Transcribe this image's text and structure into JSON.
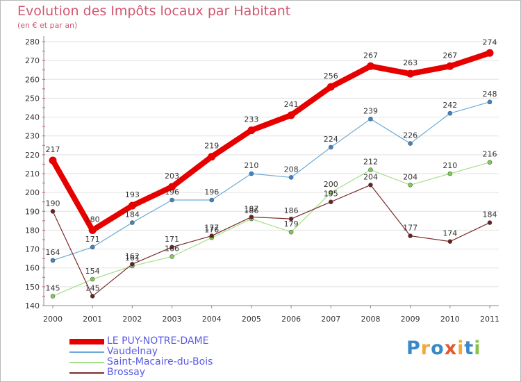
{
  "title": "Evolution des Impôts locaux par Habitant",
  "subtitle": "(en € et par an)",
  "logo": {
    "text": "Proxiti",
    "colors": [
      "#3a88c8",
      "#f2a93b",
      "#3a88c8",
      "#e4572e",
      "#f2a93b",
      "#3a88c8",
      "#8bc34a"
    ]
  },
  "chart_data": {
    "type": "line",
    "title": "Evolution des Impôts locaux par Habitant",
    "subtitle": "(en € et par an)",
    "xlabel": "",
    "ylabel": "",
    "x": [
      "2000",
      "2001",
      "2002",
      "2003",
      "2004",
      "2005",
      "2006",
      "2007",
      "2008",
      "2009",
      "2010",
      "2011"
    ],
    "ylim": [
      140,
      280
    ],
    "yticks": [
      140,
      150,
      160,
      170,
      180,
      190,
      200,
      210,
      220,
      230,
      240,
      250,
      260,
      270,
      280
    ],
    "grid": "horizontal",
    "legend_position": "bottom-left",
    "series": [
      {
        "name": "LE PUY-NOTRE-DAME",
        "color": "#e60000",
        "marker": "#e60000",
        "width": 8,
        "values": [
          217,
          180,
          193,
          203,
          219,
          233,
          241,
          256,
          267,
          263,
          267,
          274
        ]
      },
      {
        "name": "Vaudelnay",
        "color": "#6aaad6",
        "marker": "#3d85c6",
        "width": 1.2,
        "values": [
          164,
          171,
          184,
          196,
          196,
          210,
          208,
          224,
          239,
          226,
          242,
          248
        ]
      },
      {
        "name": "Saint-Macaire-du-Bois",
        "color": "#a6e08a",
        "marker": "#7bd24a",
        "width": 1.2,
        "values": [
          145,
          154,
          161,
          166,
          176,
          186,
          179,
          200,
          212,
          204,
          210,
          216
        ]
      },
      {
        "name": "Brossay",
        "color": "#7a2a2a",
        "marker": "#6b1e1e",
        "width": 1.2,
        "values": [
          190,
          145,
          162,
          171,
          177,
          187,
          186,
          195,
          204,
          177,
          174,
          184
        ]
      }
    ]
  }
}
